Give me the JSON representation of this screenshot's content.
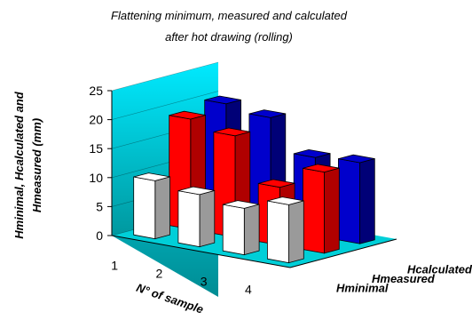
{
  "chart_data": {
    "type": "bar",
    "title": "Flattening minimum, measured and calculated",
    "subtitle": "after  hot drawing (rolling)",
    "ylabel_line1": "Hminimal, Hcalculated and",
    "ylabel_line2": "Hmeasured (mm)",
    "xlabel": "N° of sample",
    "categories": [
      "1",
      "2",
      "3",
      "4"
    ],
    "ylim": [
      0,
      25
    ],
    "yticks": [
      "0",
      "5",
      "10",
      "15",
      "20",
      "25"
    ],
    "series": [
      {
        "name": "Hminimal",
        "values": [
          10,
          9,
          8,
          10
        ],
        "color": "#ffffff",
        "side_color": "#9a9a9a"
      },
      {
        "name": "Hmeasured",
        "values": [
          19,
          17.5,
          10,
          14
        ],
        "color": "#ff0000",
        "side_color": "#b00000"
      },
      {
        "name": "Hcalculated",
        "values": [
          20,
          19,
          13.5,
          14
        ],
        "color": "#0000cc",
        "side_color": "#000077"
      }
    ],
    "wall_colors": [
      "#00e0ff",
      "#009fa8"
    ],
    "floor_color": "#00cfd8"
  }
}
